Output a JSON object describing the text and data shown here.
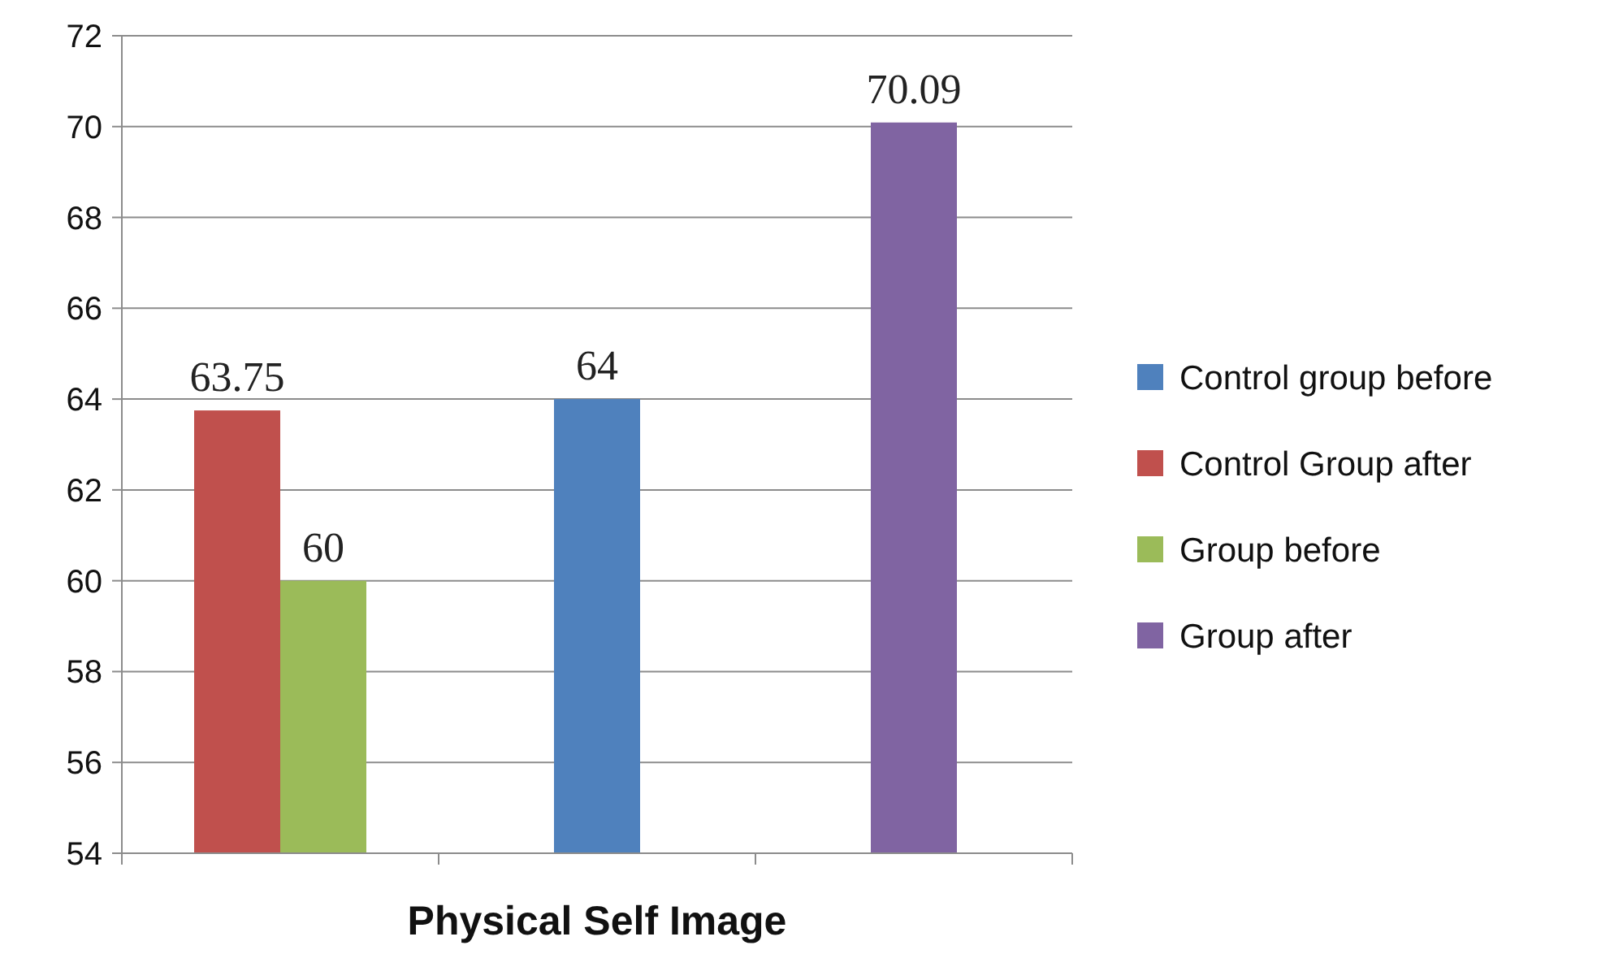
{
  "chart_data": {
    "type": "bar",
    "xlabel": "Physical Self Image",
    "categories": [
      null,
      null,
      null
    ],
    "series": [
      {
        "name": "Control group before",
        "color": "#4f81bd",
        "values": [
          null,
          64,
          null
        ]
      },
      {
        "name": "Control Group after",
        "color": "#c0504d",
        "values": [
          63.75,
          null,
          null
        ]
      },
      {
        "name": "Group before",
        "color": "#9bbb59",
        "values": [
          60,
          null,
          null
        ]
      },
      {
        "name": "Group after",
        "color": "#8064a2",
        "values": [
          null,
          null,
          70.09
        ]
      }
    ],
    "ylim": [
      54,
      72
    ],
    "yticks": [
      54,
      56,
      58,
      60,
      62,
      64,
      66,
      68,
      70,
      72
    ],
    "grid": "y",
    "legend": "right",
    "data_labels": true
  }
}
